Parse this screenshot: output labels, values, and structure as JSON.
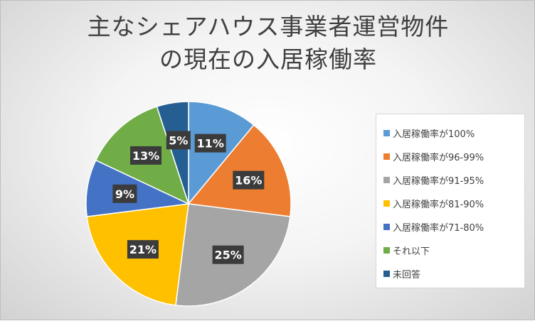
{
  "chart_data": {
    "type": "pie",
    "title_lines": [
      "主なシェアハウス事業者運営物件",
      "の現在の入居稼働率"
    ],
    "categories": [
      "入居稼働率が100%",
      "入居稼働率が96-99%",
      "入居稼働率が91-95%",
      "入居稼働率が81-90%",
      "入居稼働率が71-80%",
      "それ以下",
      "未回答"
    ],
    "values": [
      11,
      16,
      25,
      21,
      9,
      13,
      5
    ],
    "labels": [
      "11%",
      "16%",
      "25%",
      "21%",
      "9%",
      "13%",
      "5%"
    ],
    "colors": [
      "#5b9bd5",
      "#ed7d31",
      "#a5a5a5",
      "#ffc000",
      "#4472c4",
      "#70ad47",
      "#255e91"
    ],
    "legend_position": "right",
    "start_angle": "top, clockwise"
  }
}
